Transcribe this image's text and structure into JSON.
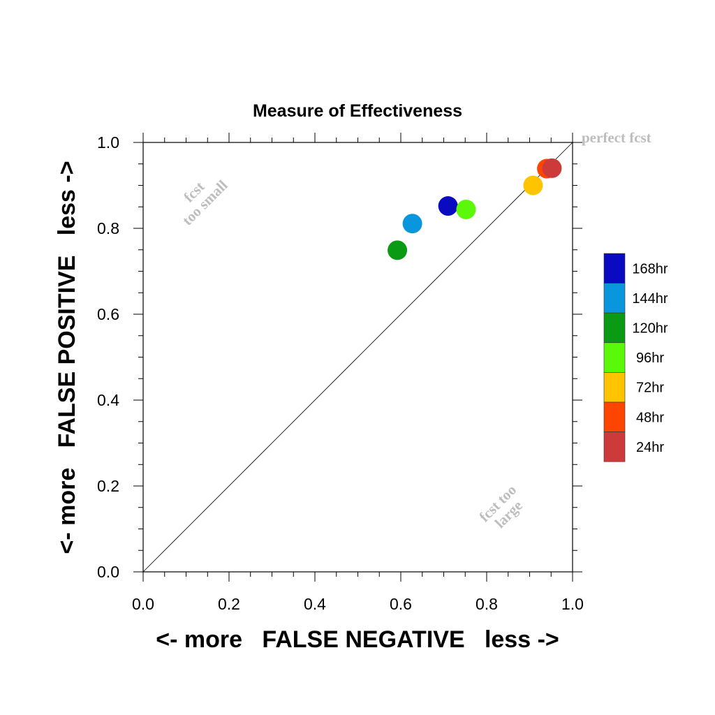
{
  "chart_data": {
    "type": "scatter",
    "title": "Measure of Effectiveness",
    "xlabel": "<- more   FALSE NEGATIVE   less ->",
    "ylabel": "<- more   FALSE POSITIVE   less ->",
    "xlim": [
      0,
      1
    ],
    "ylim": [
      0,
      1
    ],
    "x_ticks": [
      "0.0",
      "0.2",
      "0.4",
      "0.6",
      "0.8",
      "1.0"
    ],
    "y_ticks": [
      "0.0",
      "0.2",
      "0.4",
      "0.6",
      "0.8",
      "1.0"
    ],
    "grid": false,
    "reference_line": "diagonal y = x",
    "annotations": {
      "perfect": "perfect fcst",
      "too_small_1": "fcst",
      "too_small_2": "too small",
      "too_large_1": "fcst too",
      "too_large_2": "large"
    },
    "legend_position": "right",
    "series": [
      {
        "name": "168hr",
        "color": "#0a0ac0",
        "x": 0.71,
        "y": 0.852
      },
      {
        "name": "144hr",
        "color": "#0a96dc",
        "x": 0.627,
        "y": 0.811
      },
      {
        "name": "120hr",
        "color": "#0a9a14",
        "x": 0.592,
        "y": 0.749
      },
      {
        "name": "96hr",
        "color": "#5cf80a",
        "x": 0.752,
        "y": 0.844
      },
      {
        "name": "72hr",
        "color": "#ffc400",
        "x": 0.908,
        "y": 0.9
      },
      {
        "name": "48hr",
        "color": "#ff4600",
        "x": 0.94,
        "y": 0.939
      },
      {
        "name": "24hr",
        "color": "#cc3a3a",
        "x": 0.952,
        "y": 0.94
      }
    ]
  }
}
